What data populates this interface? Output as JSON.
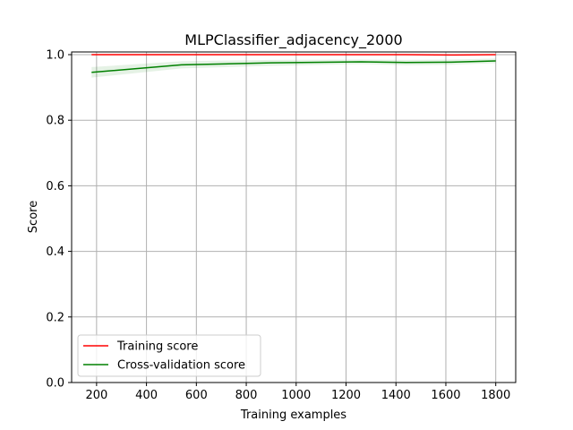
{
  "chart_data": {
    "type": "line",
    "title": "MLPClassifier_adjacency_2000",
    "xlabel": "Training examples",
    "ylabel": "Score",
    "xlim": [
      100,
      1880
    ],
    "ylim": [
      0.0,
      1.0
    ],
    "xticks": [
      200,
      400,
      600,
      800,
      1000,
      1200,
      1400,
      1600,
      1800
    ],
    "yticks": [
      0.0,
      0.2,
      0.4,
      0.6,
      0.8,
      1.0
    ],
    "xtick_labels": [
      "200",
      "400",
      "600",
      "800",
      "1000",
      "1200",
      "1400",
      "1600",
      "1800"
    ],
    "ytick_labels": [
      "0.0",
      "0.2",
      "0.4",
      "0.6",
      "0.8",
      "1.0"
    ],
    "grid": true,
    "legend_position": "lower-left",
    "x": [
      180,
      540,
      900,
      1260,
      1440,
      1620,
      1800
    ],
    "series": [
      {
        "name": "Training score",
        "color": "#ff0000",
        "values": [
          1.0,
          1.0,
          1.0,
          1.0,
          1.0,
          0.999,
          1.0
        ],
        "band": [
          [
            1.0,
            1.0
          ],
          [
            1.0,
            1.0
          ],
          [
            1.0,
            1.0
          ],
          [
            1.0,
            1.0
          ],
          [
            1.0,
            1.0
          ],
          [
            0.998,
            1.0
          ],
          [
            1.0,
            1.0
          ]
        ]
      },
      {
        "name": "Cross-validation score",
        "color": "#008000",
        "values": [
          0.946,
          0.969,
          0.975,
          0.978,
          0.976,
          0.977,
          0.981
        ],
        "band": [
          [
            0.93,
            0.962
          ],
          [
            0.958,
            0.98
          ],
          [
            0.966,
            0.984
          ],
          [
            0.971,
            0.985
          ],
          [
            0.968,
            0.984
          ],
          [
            0.969,
            0.985
          ],
          [
            0.974,
            0.988
          ]
        ]
      }
    ]
  }
}
